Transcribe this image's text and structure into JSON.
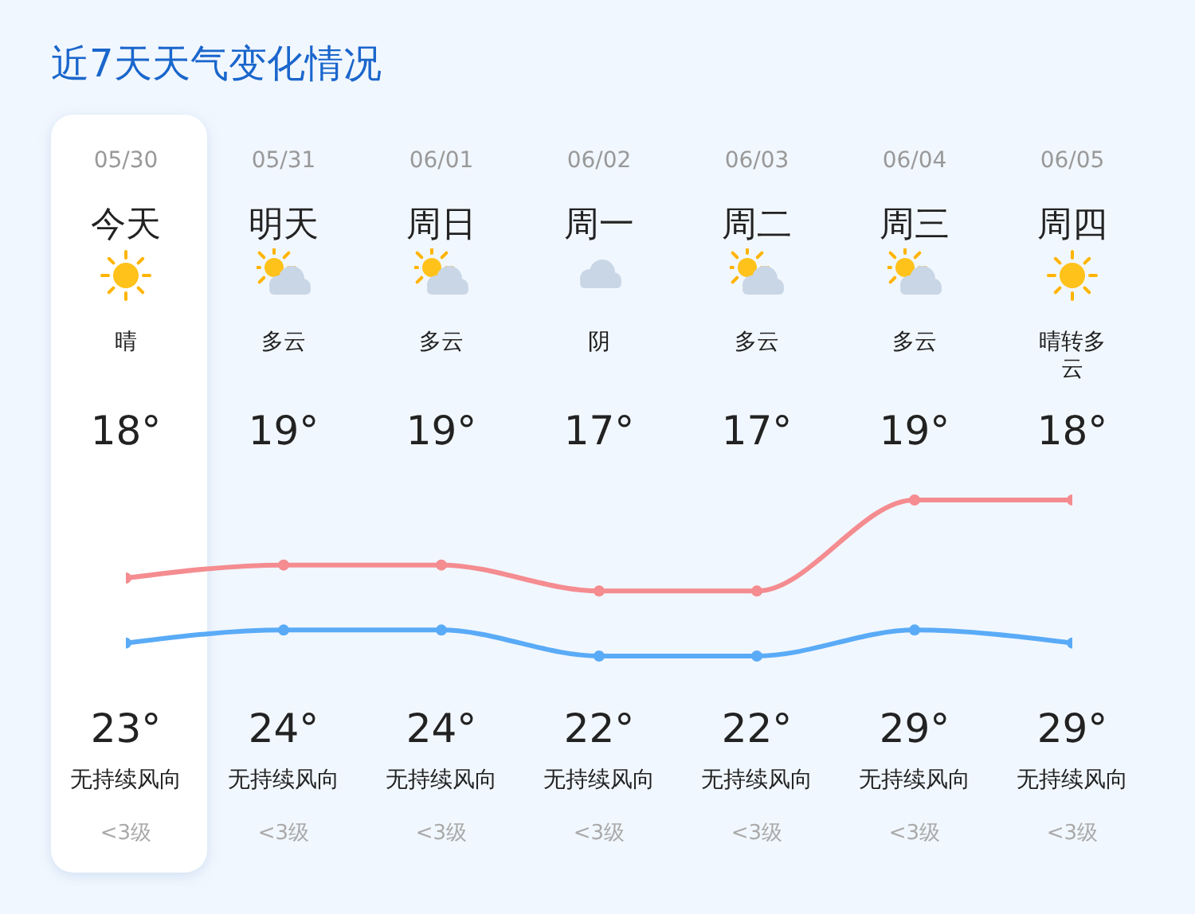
{
  "chart_data": {
    "type": "line",
    "title": "近7天天气变化情况",
    "categories": [
      "05/30",
      "05/31",
      "06/01",
      "06/02",
      "06/03",
      "06/04",
      "06/05"
    ],
    "marker": "circle",
    "series": [
      {
        "color": "#f48c90",
        "values": [
          23,
          24,
          24,
          22,
          22,
          29,
          29
        ],
        "value_labels": [
          "23°",
          "24°",
          "24°",
          "22°",
          "22°",
          "29°",
          "29°"
        ]
      },
      {
        "color": "#5aabf7",
        "values": [
          18,
          19,
          19,
          17,
          17,
          19,
          18
        ],
        "value_labels": [
          "18°",
          "19°",
          "19°",
          "17°",
          "17°",
          "19°",
          "18°"
        ]
      }
    ],
    "annotations": [
      "今天",
      "明天",
      "周日",
      "周一",
      "周二",
      "周三",
      "周四",
      "晴",
      "多云",
      "多云",
      "阴",
      "多云",
      "多云",
      "晴转多云",
      "无持续风向",
      "无持续风向",
      "无持续风向",
      "无持续风向",
      "无持续风向",
      "无持续风向",
      "无持续风向",
      "<3级",
      "<3级",
      "<3级",
      "<3级",
      "<3级",
      "<3级",
      "<3级"
    ]
  }
}
